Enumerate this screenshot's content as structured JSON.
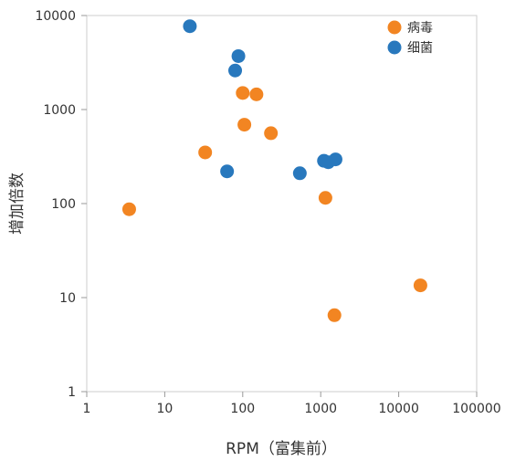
{
  "chart_data": {
    "type": "scatter",
    "title": "",
    "xlabel": "RPM（富集前）",
    "ylabel": "增加倍数",
    "x_scale": "log",
    "y_scale": "log",
    "xlim": [
      1,
      100000
    ],
    "ylim": [
      1,
      10000
    ],
    "x_tick_labels": [
      "1",
      "10",
      "100",
      "1000",
      "10000",
      "100000"
    ],
    "y_tick_labels": [
      "1",
      "10",
      "100",
      "1000",
      "10000"
    ],
    "grid": false,
    "legend_position": "top-right",
    "series": [
      {
        "name": "病毒",
        "color": "#f28522",
        "points": [
          {
            "x": 3.5,
            "y": 87
          },
          {
            "x": 33,
            "y": 350
          },
          {
            "x": 100,
            "y": 1500
          },
          {
            "x": 150,
            "y": 1450
          },
          {
            "x": 105,
            "y": 690
          },
          {
            "x": 230,
            "y": 560
          },
          {
            "x": 1150,
            "y": 115
          },
          {
            "x": 1500,
            "y": 6.5
          },
          {
            "x": 19000,
            "y": 13.5
          }
        ]
      },
      {
        "name": "细菌",
        "color": "#2878bd",
        "points": [
          {
            "x": 21,
            "y": 7700
          },
          {
            "x": 88,
            "y": 3700
          },
          {
            "x": 80,
            "y": 2600
          },
          {
            "x": 63,
            "y": 220
          },
          {
            "x": 540,
            "y": 210
          },
          {
            "x": 1100,
            "y": 285
          },
          {
            "x": 1250,
            "y": 275
          },
          {
            "x": 1550,
            "y": 295
          }
        ]
      }
    ]
  }
}
